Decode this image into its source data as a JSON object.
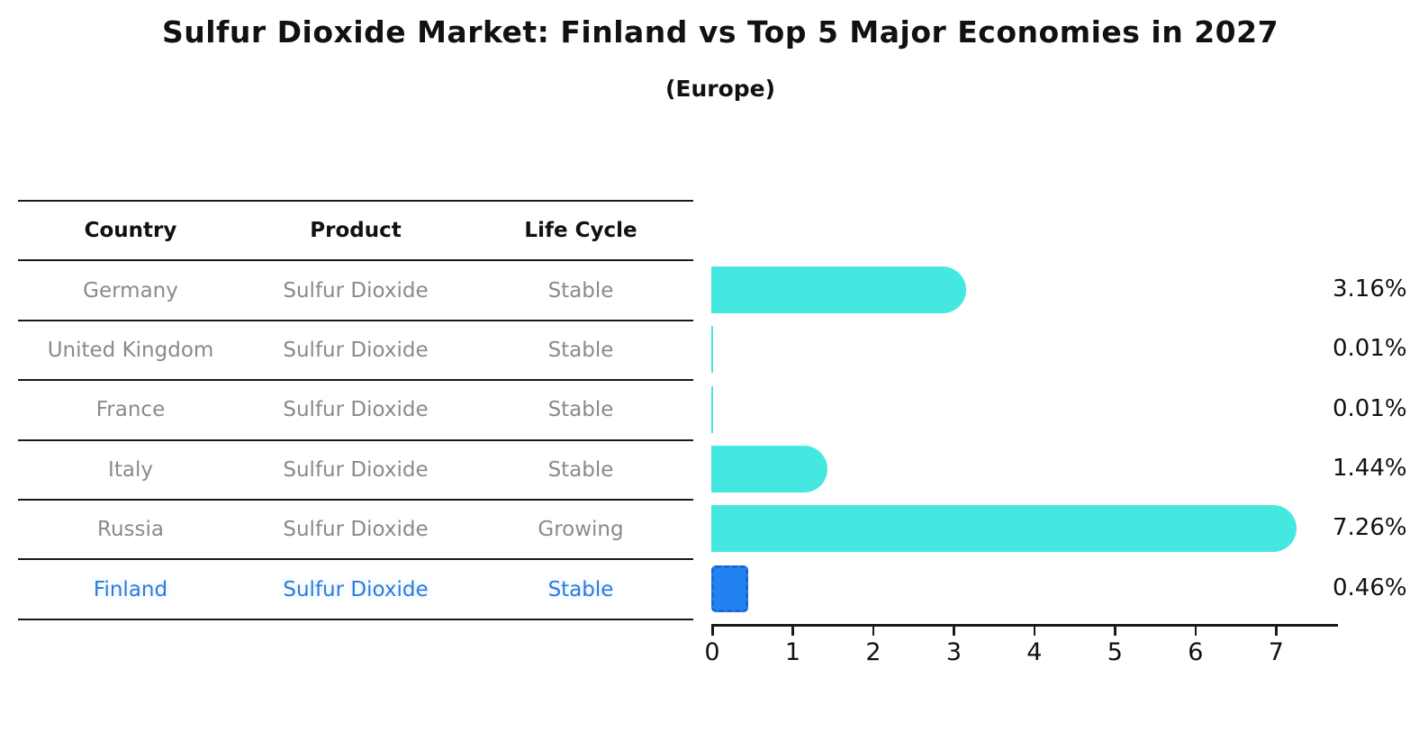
{
  "header": {
    "title": "Sulfur Dioxide Market: Finland vs Top 5 Major Economies in 2027",
    "subtitle": "(Europe)"
  },
  "table": {
    "columns": [
      "Country",
      "Product",
      "Life Cycle"
    ],
    "rows": [
      {
        "country": "Germany",
        "product": "Sulfur Dioxide",
        "life_cycle": "Stable",
        "highlight": false
      },
      {
        "country": "United Kingdom",
        "product": "Sulfur Dioxide",
        "life_cycle": "Stable",
        "highlight": false
      },
      {
        "country": "France",
        "product": "Sulfur Dioxide",
        "life_cycle": "Stable",
        "highlight": false
      },
      {
        "country": "Italy",
        "product": "Sulfur Dioxide",
        "life_cycle": "Stable",
        "highlight": false
      },
      {
        "country": "Russia",
        "product": "Sulfur Dioxide",
        "life_cycle": "Growing",
        "highlight": false
      },
      {
        "country": "Finland",
        "product": "Sulfur Dioxide",
        "life_cycle": "Stable",
        "highlight": true
      }
    ]
  },
  "chart_data": {
    "type": "bar",
    "orientation": "horizontal",
    "title": "Sulfur Dioxide Market: Finland vs Top 5 Major Economies in 2027",
    "subtitle": "(Europe)",
    "categories": [
      "Germany",
      "United Kingdom",
      "France",
      "Italy",
      "Russia",
      "Finland"
    ],
    "values": [
      3.16,
      0.01,
      0.01,
      1.44,
      7.26,
      0.46
    ],
    "value_labels": [
      "3.16%",
      "0.01%",
      "0.01%",
      "1.44%",
      "7.26%",
      "0.46%"
    ],
    "xlabel": "",
    "ylabel": "",
    "xlim": [
      0,
      7.6
    ],
    "xticks": [
      0,
      1,
      2,
      3,
      4,
      5,
      6,
      7
    ],
    "grid": false,
    "legend": "none",
    "bar_color": "#45e8e0",
    "highlight_index": 5,
    "highlight_color": "#2182f0",
    "highlight_edge_color": "#1a67cf",
    "highlight_style": "dashed-border",
    "text_color": "#111111",
    "muted_text_color": "#8a8a8a",
    "highlight_text_color": "#2e7bd9"
  }
}
